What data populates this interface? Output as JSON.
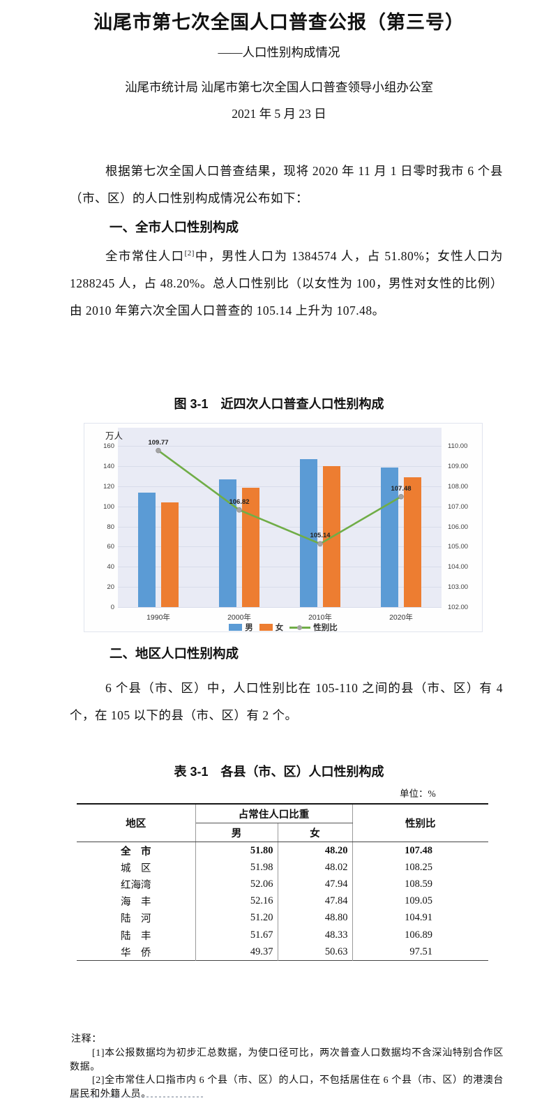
{
  "page": {
    "title": "汕尾市第七次全国人口普查公报（第三号）",
    "subtitle": "——人口性别构成情况",
    "authors": "汕尾市统计局 汕尾市第七次全国人口普查领导小组办公室",
    "date": "2021 年 5 月 23 日"
  },
  "sections": {
    "intro": "根据第七次全国人口普查结果，现将 2020 年 11 月 1 日零时我市 6 个县（市、区）的人口性别构成情况公布如下：",
    "heading1": "一、全市人口性别构成",
    "para1_pre": "全市常住人口",
    "para1_sup": "[2]",
    "para1_post": "中，男性人口为 1384574 人，占 51.80%；女性人口为 1288245 人，占 48.20%。总人口性别比（以女性为 100，男性对女性的比例）由 2010 年第六次全国人口普查的 105.14 上升为 107.48。",
    "heading2": "二、地区人口性别构成",
    "para2": "6 个县（市、区）中，人口性别比在 105-110 之间的县（市、区）有 4 个，在 105 以下的县（市、区）有 2 个。"
  },
  "chart_data": {
    "type": "bar+line",
    "title": "图 3-1　近四次人口普查人口性别构成",
    "categories": [
      "1990年",
      "2000年",
      "2010年",
      "2020年"
    ],
    "series": [
      {
        "name": "男",
        "type": "bar",
        "axis": "left",
        "color": "#5B9BD5",
        "values": [
          113.9,
          127.0,
          146.9,
          138.5
        ]
      },
      {
        "name": "女",
        "type": "bar",
        "axis": "left",
        "color": "#ED7D31",
        "values": [
          103.6,
          118.6,
          140.0,
          128.8
        ]
      },
      {
        "name": "性别比",
        "type": "line",
        "axis": "right",
        "color": "#70AD47",
        "marker_color": "#A5A5A5",
        "values": [
          109.77,
          106.82,
          105.14,
          107.48
        ],
        "labels": [
          "109.77",
          "106.82",
          "105.14",
          "107.48"
        ]
      }
    ],
    "left_axis": {
      "title": "万人",
      "min": 0,
      "max": 160,
      "step": 20
    },
    "right_axis": {
      "min": 102,
      "max": 110,
      "step": 1,
      "decimals": 2
    },
    "legend_position": "bottom",
    "plot_bg": "#E9EBF5",
    "grid_color": "#D8DCEA"
  },
  "table": {
    "title": "表 3-1　各县（市、区）人口性别构成",
    "unit": "单位：%",
    "header": {
      "region": "地区",
      "share": "占常住人口比重",
      "male": "男",
      "female": "女",
      "ratio": "性别比"
    },
    "rows": [
      {
        "region": "全　市",
        "male": "51.80",
        "female": "48.20",
        "ratio": "107.48",
        "bold": true
      },
      {
        "region": "城　区",
        "male": "51.98",
        "female": "48.02",
        "ratio": "108.25",
        "bold": false
      },
      {
        "region": "红海湾",
        "male": "52.06",
        "female": "47.94",
        "ratio": "108.59",
        "bold": false
      },
      {
        "region": "海　丰",
        "male": "52.16",
        "female": "47.84",
        "ratio": "109.05",
        "bold": false
      },
      {
        "region": "陆　河",
        "male": "51.20",
        "female": "48.80",
        "ratio": "104.91",
        "bold": false
      },
      {
        "region": "陆　丰",
        "male": "51.67",
        "female": "48.33",
        "ratio": "106.89",
        "bold": false
      },
      {
        "region": "华　侨",
        "male": "49.37",
        "female": "50.63",
        "ratio": "97.51",
        "bold": false
      }
    ]
  },
  "notes": {
    "label": "注释：",
    "items": [
      "[1]本公报数据均为初步汇总数据，为使口径可比，两次普查人口数据均不含深汕特别合作区数据。",
      "[2]全市常住人口指市内 6 个县（市、区）的人口，不包括居住在 6 个县（市、区）的港澳台居民和外籍人员。"
    ]
  }
}
